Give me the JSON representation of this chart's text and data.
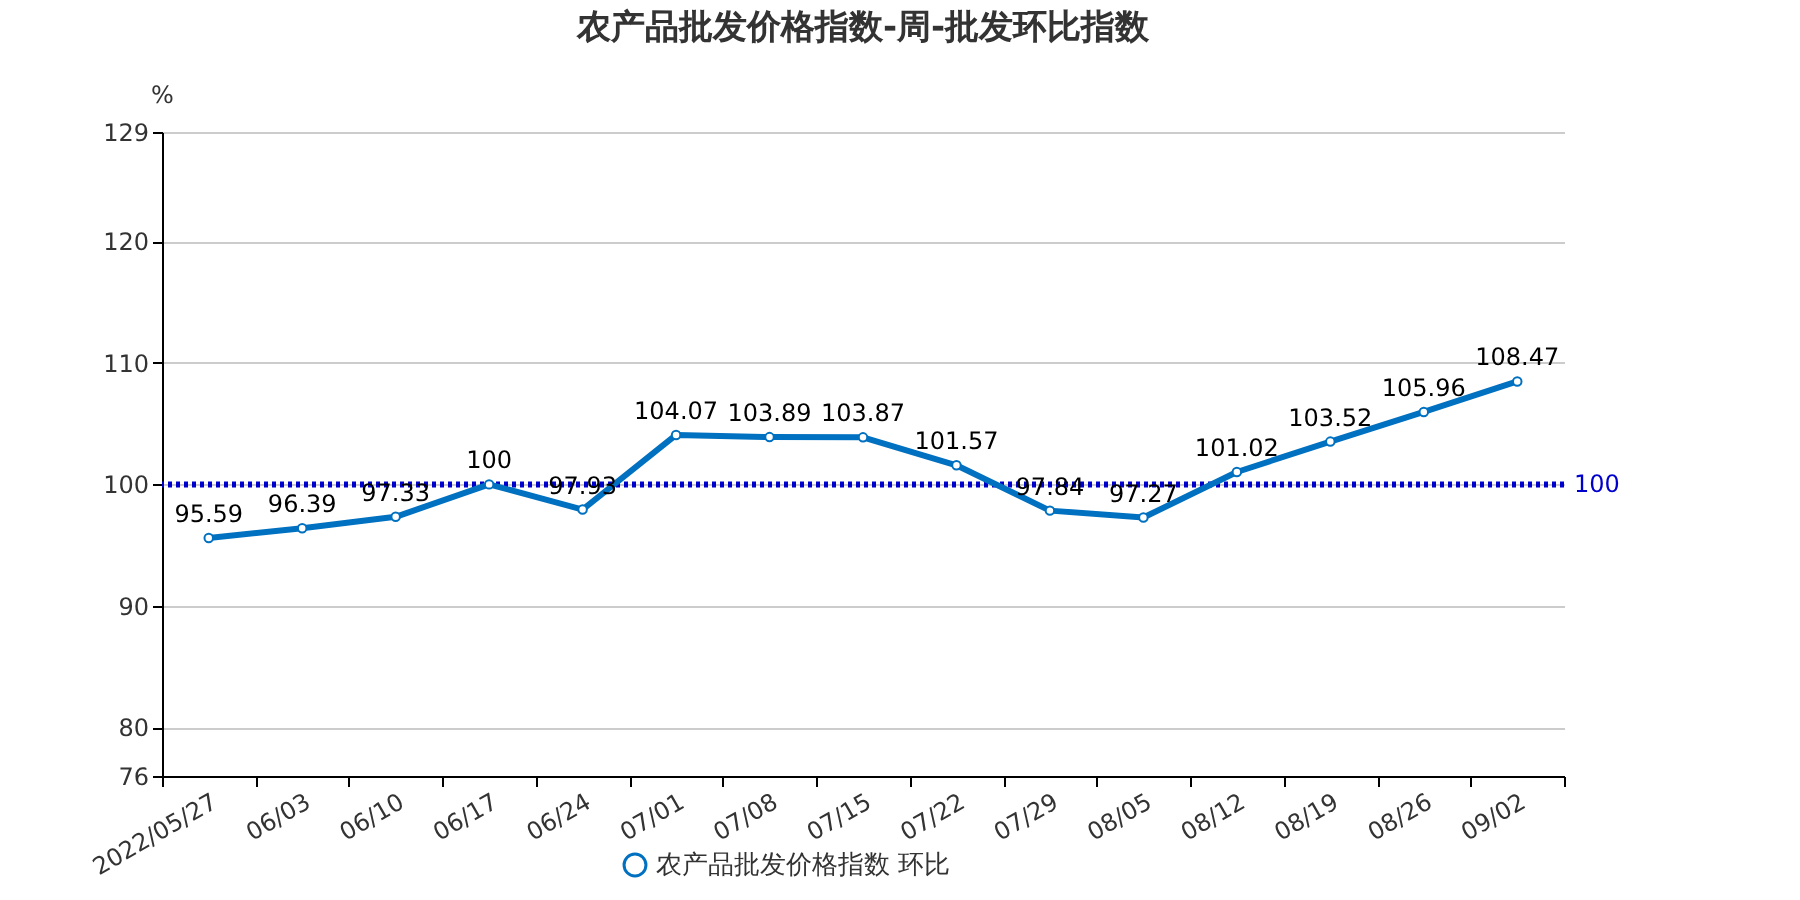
{
  "chart_data": {
    "type": "line",
    "title": "农产品批发价格指数-周-批发环比指数",
    "ylabel": "%",
    "categories": [
      "2022/05/27",
      "06/03",
      "06/10",
      "06/17",
      "06/24",
      "07/01",
      "07/08",
      "07/15",
      "07/22",
      "07/29",
      "08/05",
      "08/12",
      "08/19",
      "08/26",
      "09/02"
    ],
    "series": [
      {
        "name": "农产品批发价格指数 环比",
        "color": "#0070c0",
        "values": [
          95.59,
          96.39,
          97.33,
          100,
          97.93,
          104.07,
          103.89,
          103.87,
          101.57,
          97.84,
          97.27,
          101.02,
          103.52,
          105.96,
          108.47
        ]
      }
    ],
    "ylim": [
      76,
      129
    ],
    "yticks": [
      76,
      80,
      90,
      100,
      110,
      120,
      129
    ],
    "grid": "y",
    "legend": "bottom",
    "marker": "circle",
    "data_labels": true,
    "ref_lines": [
      {
        "axis": "y",
        "value": 100,
        "label": "100",
        "color": "#0000cc",
        "line_style": "dotted"
      }
    ]
  }
}
